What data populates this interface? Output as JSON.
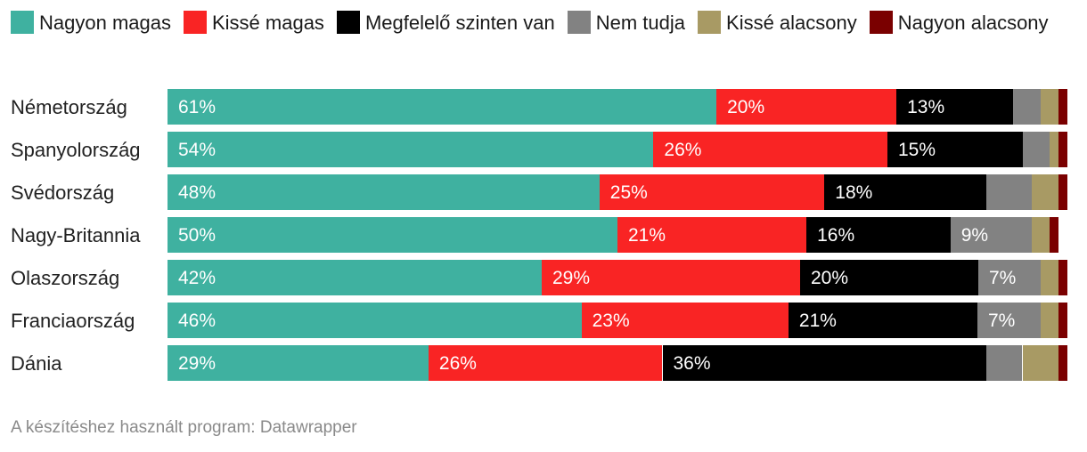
{
  "chart_data": {
    "type": "bar",
    "orientation": "horizontal",
    "stacked": true,
    "series": [
      {
        "name": "Nagyon magas",
        "color": "#3fb1a0",
        "label_color": "#ffffff"
      },
      {
        "name": "Kissé magas",
        "color": "#f92424",
        "label_color": "#ffffff"
      },
      {
        "name": "Megfelelő szinten van",
        "color": "#000000",
        "label_color": "#ffffff"
      },
      {
        "name": "Nem tudja",
        "color": "#828282",
        "label_color": "#ffffff"
      },
      {
        "name": "Kissé alacsony",
        "color": "#a89a64",
        "label_color": "#ffffff"
      },
      {
        "name": "Nagyon alacsony",
        "color": "#7a0000",
        "label_color": "#ffffff"
      }
    ],
    "categories": [
      "Németország",
      "Spanyolország",
      "Svédország",
      "Nagy-Britannia",
      "Olaszország",
      "Franciaország",
      "Dánia"
    ],
    "values": [
      [
        61,
        20,
        13,
        3,
        2,
        1
      ],
      [
        54,
        26,
        15,
        3,
        1,
        1
      ],
      [
        48,
        25,
        18,
        5,
        3,
        1
      ],
      [
        50,
        21,
        16,
        9,
        2,
        1
      ],
      [
        42,
        29,
        20,
        7,
        2,
        1
      ],
      [
        46,
        23,
        21,
        7,
        2,
        1
      ],
      [
        29,
        26,
        36,
        4,
        4,
        1
      ]
    ],
    "labels": [
      [
        "61%",
        "20%",
        "13%",
        "",
        "",
        ""
      ],
      [
        "54%",
        "26%",
        "15%",
        "",
        "",
        ""
      ],
      [
        "48%",
        "25%",
        "18%",
        "",
        "",
        ""
      ],
      [
        "50%",
        "21%",
        "16%",
        "9%",
        "",
        ""
      ],
      [
        "42%",
        "29%",
        "20%",
        "7%",
        "",
        ""
      ],
      [
        "46%",
        "23%",
        "21%",
        "7%",
        "",
        ""
      ],
      [
        "29%",
        "26%",
        "36%",
        "",
        "",
        ""
      ]
    ],
    "xlim": [
      0,
      100
    ],
    "unit": "%"
  },
  "footer": "A készítéshez használt program: Datawrapper"
}
